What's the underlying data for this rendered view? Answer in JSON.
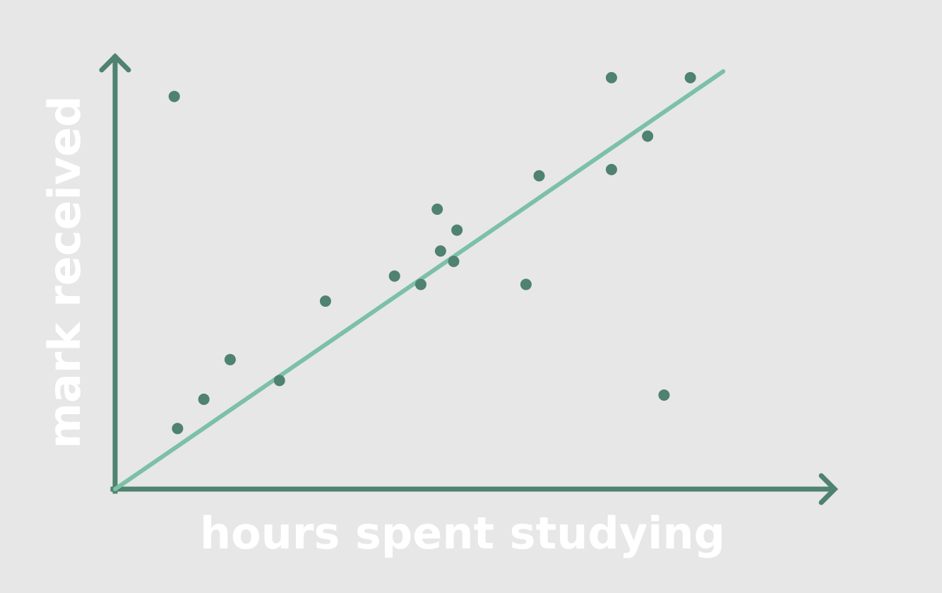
{
  "chart_data": {
    "type": "scatter",
    "title": "",
    "xlabel": "hours spent studying",
    "ylabel": "mark received",
    "xlim": [
      0,
      100
    ],
    "ylim": [
      0,
      100
    ],
    "grid": false,
    "axis_ticks": false,
    "points": [
      {
        "x": 9.0,
        "y": 94.0
      },
      {
        "x": 9.5,
        "y": 14.5
      },
      {
        "x": 13.5,
        "y": 21.5
      },
      {
        "x": 17.5,
        "y": 31.0
      },
      {
        "x": 25.0,
        "y": 26.0
      },
      {
        "x": 32.0,
        "y": 45.0
      },
      {
        "x": 42.5,
        "y": 51.0
      },
      {
        "x": 46.5,
        "y": 49.0
      },
      {
        "x": 49.5,
        "y": 57.0
      },
      {
        "x": 49.0,
        "y": 67.0
      },
      {
        "x": 52.0,
        "y": 62.0
      },
      {
        "x": 51.5,
        "y": 54.5
      },
      {
        "x": 62.5,
        "y": 49.0
      },
      {
        "x": 64.5,
        "y": 75.0
      },
      {
        "x": 75.5,
        "y": 76.5
      },
      {
        "x": 75.5,
        "y": 98.5
      },
      {
        "x": 81.0,
        "y": 84.5
      },
      {
        "x": 83.5,
        "y": 22.5
      },
      {
        "x": 87.5,
        "y": 98.5
      }
    ],
    "trendline": {
      "x1": 0,
      "y1": 0,
      "x2": 92.5,
      "y2": 100
    },
    "colors": {
      "background": "#e7e7e7",
      "axis": "#4f8270",
      "points": "#4f8270",
      "trendline": "#7cc0a7",
      "label": "#ffffff"
    }
  }
}
